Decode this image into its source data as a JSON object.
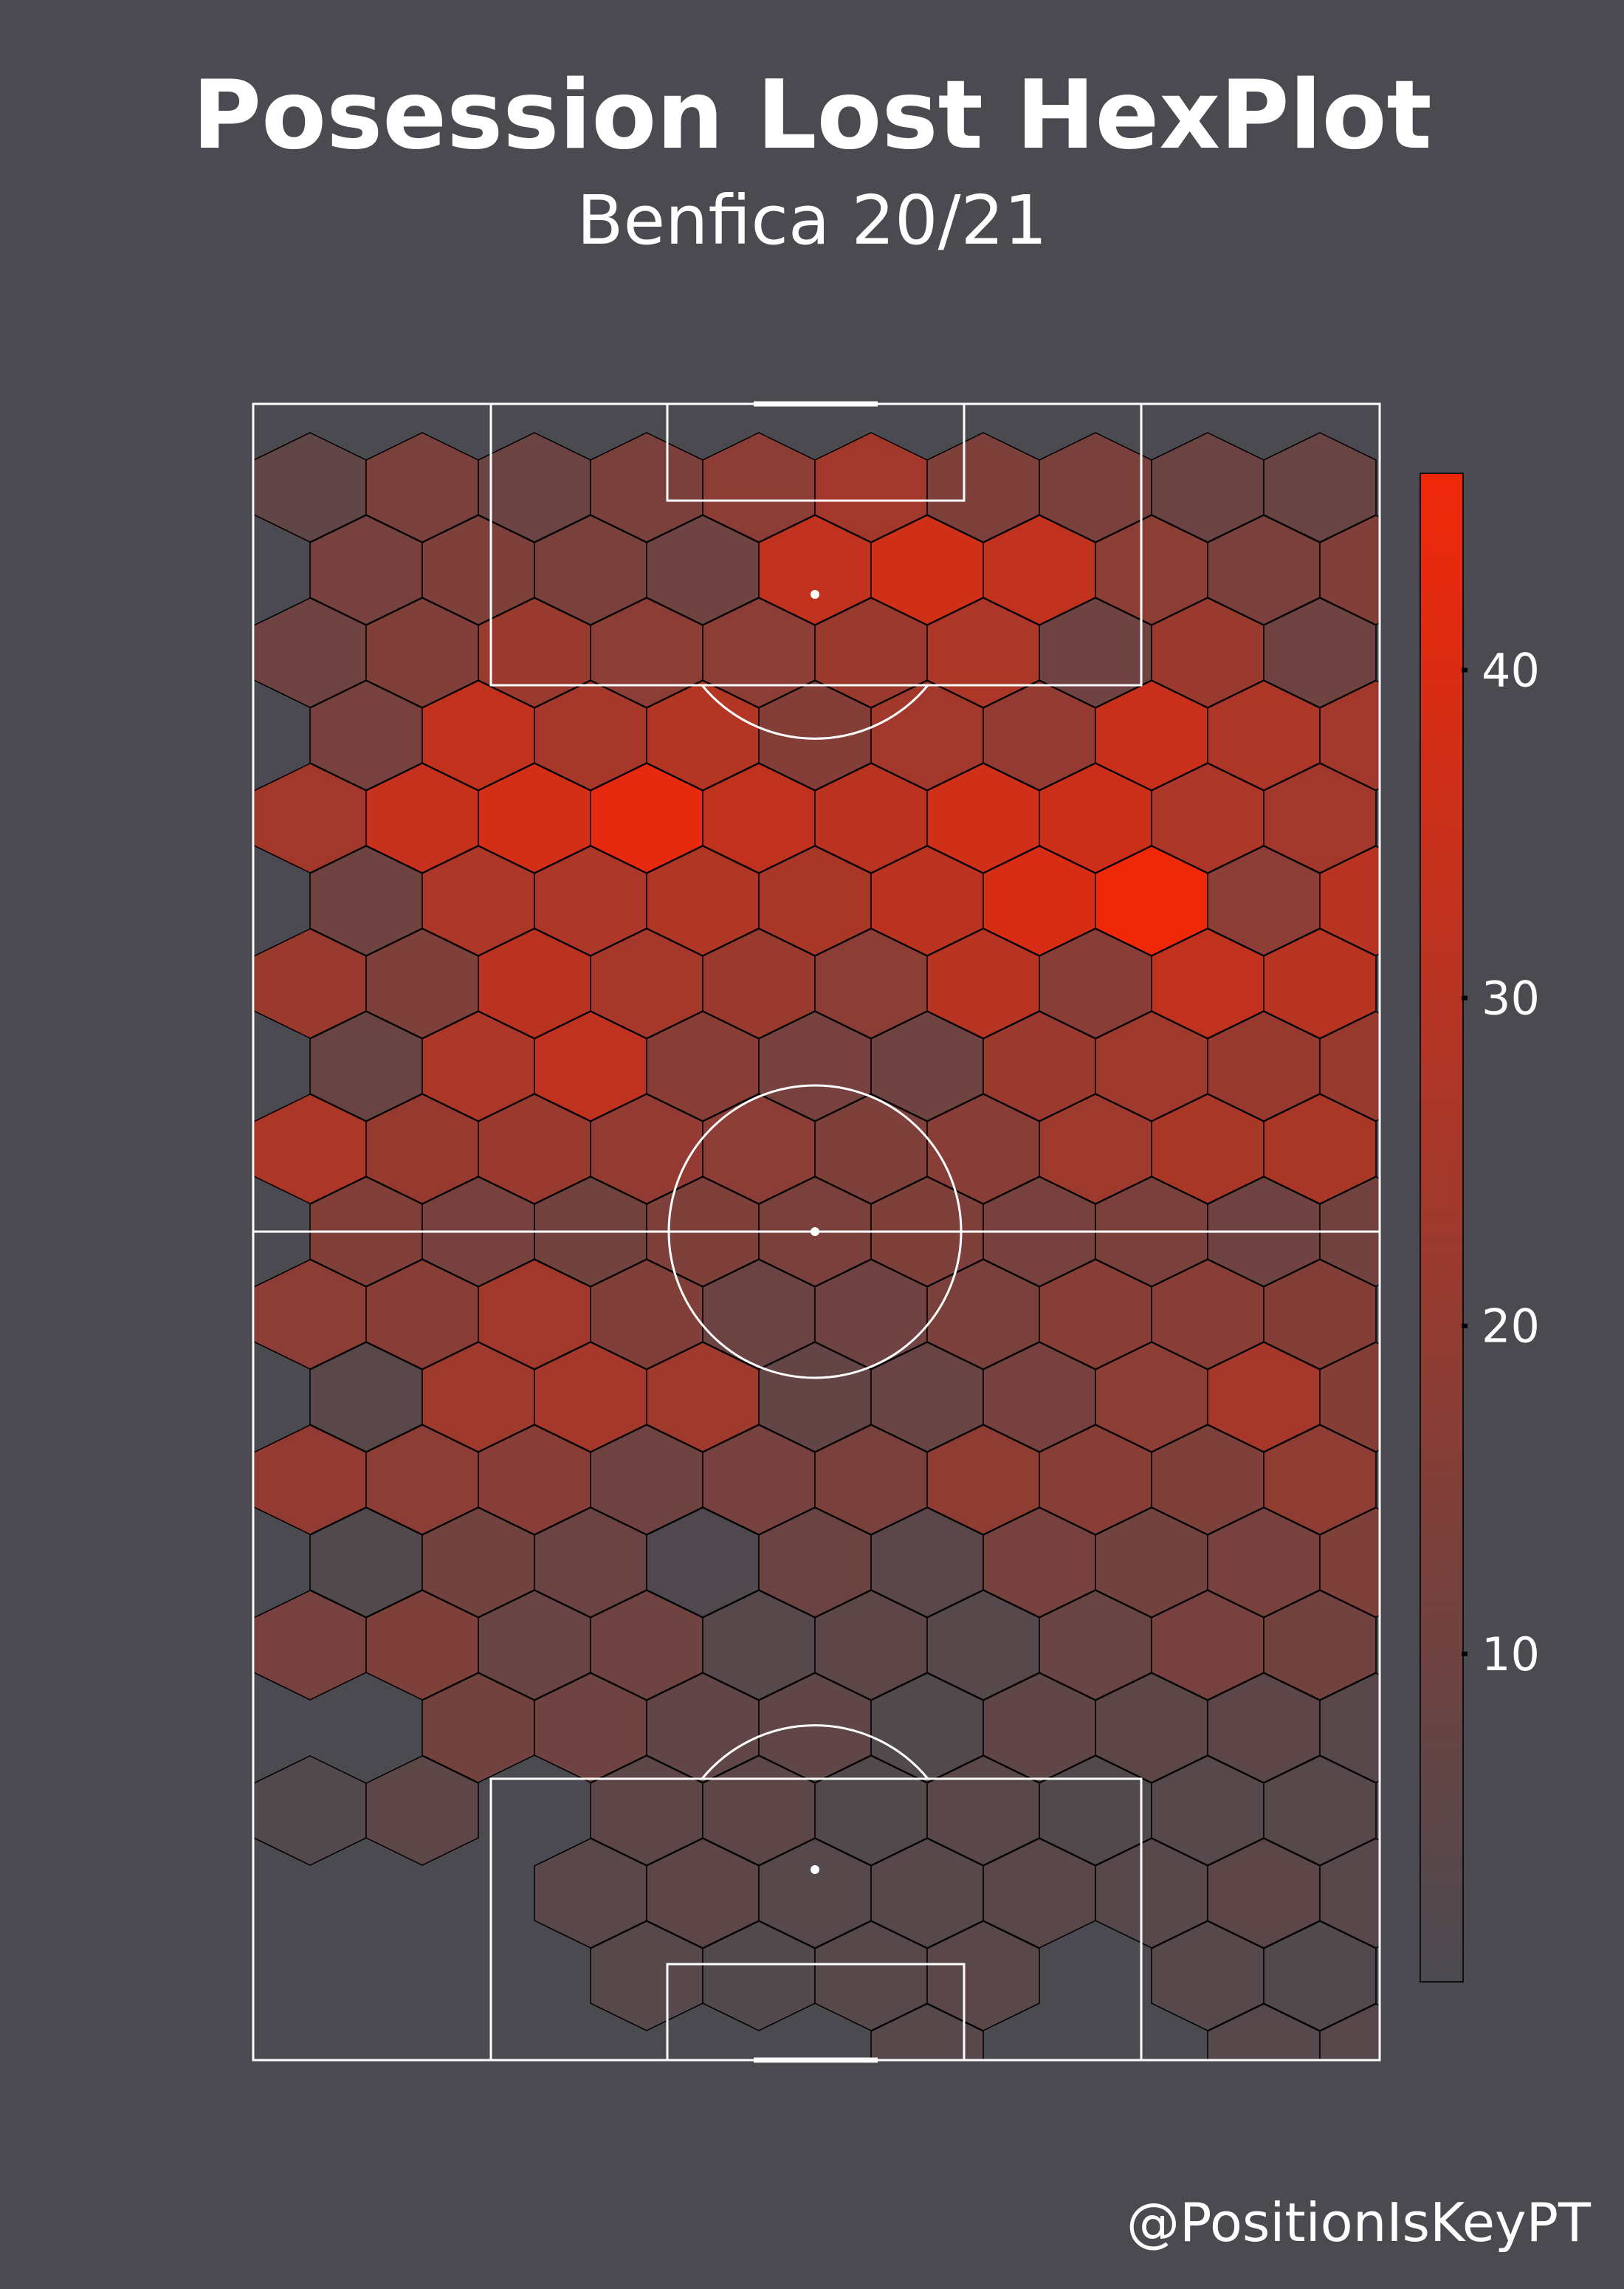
{
  "header": {
    "title": "Posession Lost HexPlot",
    "subtitle": "Benfica 20/21"
  },
  "credit": "@PositionIsKeyPT",
  "colors": {
    "background": "#4b4a50",
    "low": "#4b4a50",
    "high": "#f0280a",
    "lines": "#ffffff"
  },
  "chart_data": {
    "type": "heatmap",
    "grid": "hexbin",
    "title": "Posession Lost HexPlot",
    "subtitle": "Benfica 20/21",
    "colorbar": {
      "min": 0,
      "max": 46,
      "ticks": [
        10,
        20,
        30,
        40
      ],
      "tick_labels": [
        "10",
        "20",
        "30",
        "40"
      ]
    },
    "rows": [
      [
        6,
        13,
        9,
        13,
        18,
        24,
        14,
        13,
        9,
        8
      ],
      [
        12,
        14,
        13,
        10,
        33,
        37,
        33,
        18,
        13,
        15
      ],
      [
        10,
        15,
        22,
        18,
        18,
        22,
        27,
        10,
        22,
        10
      ],
      [
        12,
        33,
        25,
        29,
        16,
        24,
        20,
        35,
        27,
        24
      ],
      [
        24,
        34,
        38,
        43,
        33,
        31,
        37,
        36,
        27,
        24
      ],
      [
        10,
        27,
        27,
        28,
        26,
        31,
        39,
        46,
        18,
        30
      ],
      [
        22,
        14,
        31,
        25,
        22,
        18,
        30,
        17,
        33,
        30
      ],
      [
        8,
        27,
        32,
        17,
        12,
        10,
        22,
        23,
        21,
        21
      ],
      [
        27,
        21,
        22,
        20,
        18,
        14,
        17,
        23,
        26,
        26
      ],
      [
        15,
        12,
        11,
        14,
        13,
        14,
        12,
        13,
        10,
        11
      ],
      [
        18,
        17,
        24,
        15,
        9,
        10,
        13,
        17,
        17,
        16
      ],
      [
        4,
        23,
        25,
        23,
        7,
        8,
        12,
        18,
        25,
        16
      ],
      [
        20,
        18,
        17,
        10,
        12,
        13,
        19,
        17,
        14,
        19
      ],
      [
        2,
        11,
        9,
        1,
        9,
        4,
        12,
        11,
        12,
        14
      ],
      [
        12,
        14,
        8,
        10,
        3,
        5,
        3,
        8,
        12,
        11
      ],
      [
        null,
        11,
        10,
        6,
        6,
        2,
        6,
        5,
        5,
        3
      ],
      [
        2,
        5,
        null,
        5,
        5,
        2,
        4,
        2,
        3,
        3
      ],
      [
        null,
        null,
        4,
        5,
        3,
        3,
        4,
        3,
        5,
        3
      ],
      [
        null,
        null,
        null,
        3,
        2,
        3,
        4,
        null,
        3,
        2
      ],
      [
        null,
        null,
        null,
        null,
        null,
        3,
        null,
        null,
        3,
        3
      ]
    ],
    "row_offsets": [
      0,
      1,
      0,
      1,
      0,
      1,
      0,
      1,
      0,
      1,
      0,
      1,
      0,
      1,
      0,
      1,
      0,
      1,
      0,
      1
    ]
  }
}
